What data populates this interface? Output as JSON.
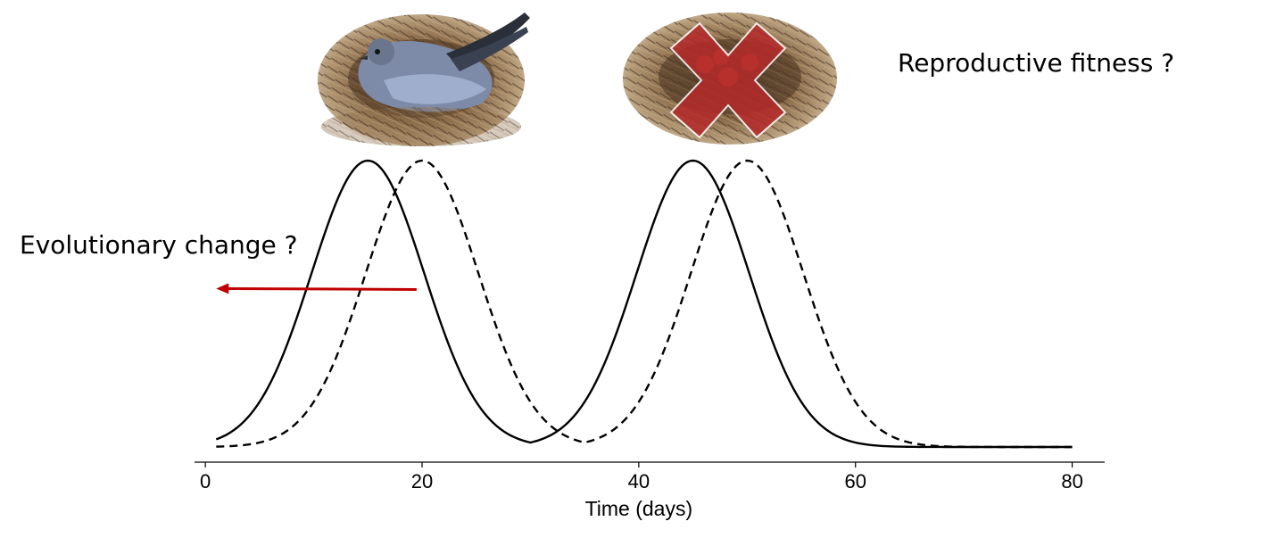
{
  "chart_data": {
    "type": "line",
    "title": "",
    "xlabel": "Time (days)",
    "ylabel": "",
    "xlim": [
      -1,
      83
    ],
    "xticks": [
      0,
      20,
      40,
      60,
      80
    ],
    "ylim": [
      0,
      1
    ],
    "grid": false,
    "legend": "none",
    "curve_sigma_days": 5.2,
    "series": [
      {
        "style": "solid",
        "color": "#000000",
        "peaks": [
          15,
          45
        ],
        "x_range": [
          1,
          80
        ]
      },
      {
        "style": "dashed",
        "color": "#000000",
        "peaks": [
          20,
          50
        ],
        "x_range": [
          1,
          80
        ]
      }
    ],
    "annotations": [
      {
        "text": "Reproductive fitness ?",
        "role": "fitness-label"
      },
      {
        "text": "Evolutionary change ?",
        "role": "evolution-label",
        "arrow_from_x": 19.5,
        "arrow_to_x": 1,
        "arrow_y": 0.55,
        "arrow_color": "#c00000"
      }
    ],
    "illustrations": [
      {
        "icon": "bird-in-nest-icon",
        "above_x": 15
      },
      {
        "icon": "failed-nest-icon",
        "above_x": 45,
        "overlay": "red-x",
        "overlay_color": "#b52a2a"
      }
    ]
  }
}
